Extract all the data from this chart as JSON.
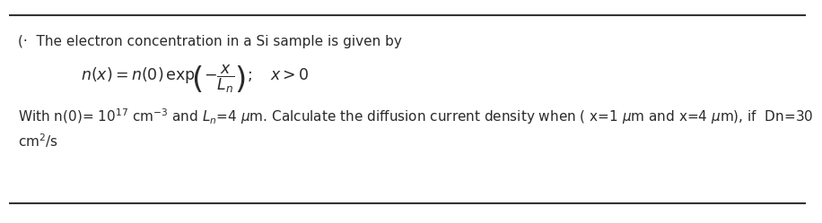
{
  "line1": "(·  The electron concentration in a Si sample is given by",
  "line3_pre": "With n(0)= 10",
  "line3_exp": "17",
  "line3_post": " cm⁻³ and L",
  "line3_sub": "n",
  "line3_post2": "=4 μm. Calculate the diffusion current density when ( x=1 μm and x=4 μm), if  Dn=30",
  "line4": "cm²/s",
  "bg_color": "#ffffff",
  "text_color": "#2a2a2a",
  "font_size_main": 11.0,
  "font_size_eq": 12.5,
  "border_color": "#333333"
}
